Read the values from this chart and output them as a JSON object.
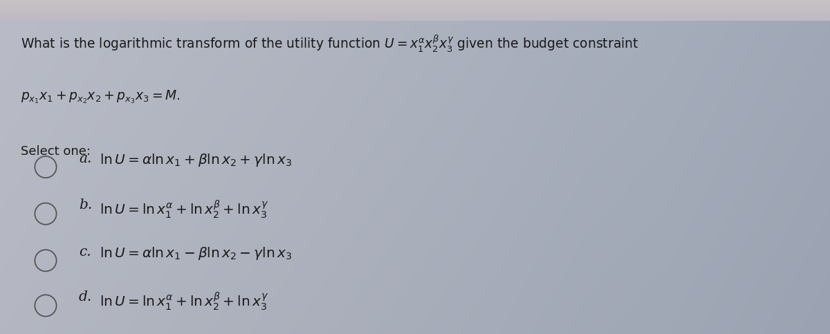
{
  "bg_color_main": "#b8bec8",
  "bg_color_top": "#c0c4cc",
  "bg_color_right": "#9aa0aa",
  "text_color": "#1a1a1a",
  "figwidth": 12.0,
  "figheight": 4.83,
  "dpi": 100,
  "title_line1_plain": "What is the logarithmic transform of the utility function ",
  "title_line1_math": "$U = x_1^{\\alpha} x_2^{\\beta} x_3^{\\gamma}$",
  "title_line1_end": " given the budget constraint",
  "title_line2": "$p_{x_1} x_1 + p_{x_2} x_2 + p_{x_3} x_3 = M.$",
  "select_one": "Select one:",
  "option_a_label": "a.",
  "option_a": "$\\ln U = \\alpha \\ln x_1 + \\beta \\ln x_2 + \\gamma \\ln x_3$",
  "option_b_label": "b.",
  "option_b": "$\\ln U = \\ln x_1^{\\alpha} + \\ln x_2^{\\beta} + \\ln x_3^{\\gamma}$",
  "option_c_label": "c.",
  "option_c": "$\\ln U = \\alpha \\ln x_1 - \\beta \\ln x_2 - \\gamma \\ln x_3$",
  "option_d_label": "d.",
  "option_d": "$\\ln U = \\ln x_1^{\\alpha} + \\ln x_2^{\\beta} + \\ln x_3^{\\gamma}$",
  "top_strip_color": "#d8d0cc",
  "circle_color": "#888888"
}
